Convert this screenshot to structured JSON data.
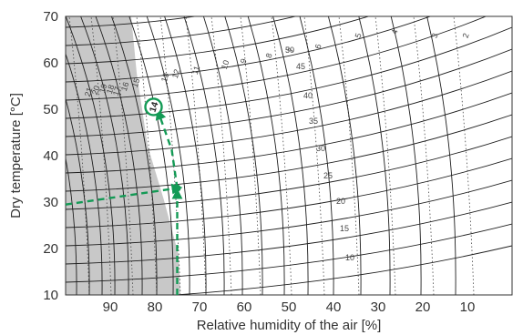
{
  "chart_data": {
    "type": "line",
    "title": "",
    "xlabel": "Relative humidity of the air [%]",
    "ylabel": "Dry temperature [°C]",
    "xlim": [
      100,
      0
    ],
    "ylim": [
      10,
      70
    ],
    "x_ticks": [
      "90",
      "80",
      "70",
      "60",
      "50",
      "40",
      "30",
      "20",
      "10"
    ],
    "y_ticks": [
      "10",
      "20",
      "30",
      "40",
      "50",
      "60",
      "70"
    ],
    "shaded_region_label": "",
    "equilibrium_moisture_curves": [
      "21",
      "20",
      "19",
      "18",
      "17",
      "16",
      "15",
      "14",
      "13",
      "12",
      "11",
      "10",
      "9",
      "8",
      "7",
      "6",
      "5",
      "4",
      "3",
      "2"
    ],
    "wet_bulb_curves": [
      "50",
      "45",
      "40",
      "35",
      "30",
      "25",
      "20",
      "15",
      "10"
    ],
    "example_point": {
      "relative_humidity": 75,
      "dry_temperature": 33
    },
    "highlighted_value": "14",
    "colors": {
      "construction_lines": "#139a55",
      "shading": "#c8c8c8",
      "curves": "#1e1e1e",
      "dotted": "#444444"
    }
  }
}
